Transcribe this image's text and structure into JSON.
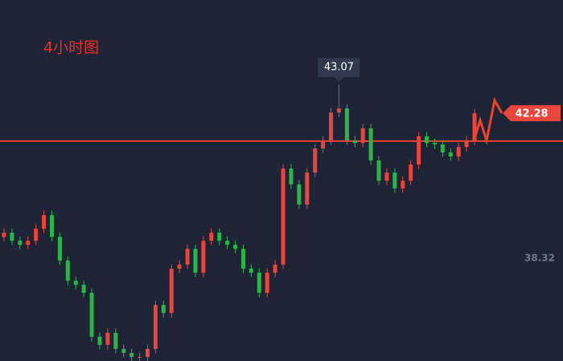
{
  "chart_data": {
    "type": "candlestick",
    "title": "4小时图",
    "ylim": [
      35.52,
      45.37
    ],
    "yticks": [
      38.32
    ],
    "hline": 41.52,
    "last_price": 42.28,
    "peak_label_index": 42,
    "up_color": "#e8453c",
    "down_color": "#2eb34b",
    "line_color": "#e8452c",
    "series": [
      {
        "open": [
          38.9,
          39.02,
          38.8,
          38.69,
          38.8,
          39.13,
          39.5,
          38.91,
          38.26,
          37.71,
          37.6,
          37.38,
          36.18,
          35.96,
          36.29,
          35.85,
          35.74,
          35.63,
          35.63,
          35.85,
          37.05,
          36.83,
          38.04,
          38.15,
          38.58,
          37.93,
          38.8,
          39.02,
          38.8,
          38.69,
          38.58,
          38.04,
          37.93,
          37.38,
          37.93,
          38.15,
          40.77,
          40.34,
          39.79,
          40.66,
          41.32,
          41.54,
          42.3,
          42.41,
          41.54,
          41.47,
          41.87,
          40.99,
          40.44,
          40.66,
          40.23,
          40.44,
          40.88,
          41.65,
          41.47,
          41.43,
          41.21,
          41.1,
          41.36,
          41.54
        ],
        "high": [
          39.14,
          39.14,
          38.92,
          38.92,
          39.25,
          39.62,
          39.62,
          39.03,
          38.38,
          37.83,
          37.72,
          37.5,
          36.3,
          36.41,
          36.41,
          35.97,
          35.86,
          35.75,
          35.97,
          37.17,
          37.17,
          38.16,
          38.27,
          38.7,
          38.7,
          38.92,
          39.14,
          39.14,
          38.92,
          38.81,
          38.7,
          38.16,
          38.05,
          38.05,
          38.27,
          40.89,
          40.89,
          40.46,
          40.78,
          41.44,
          41.66,
          42.42,
          43.07,
          42.53,
          41.66,
          41.99,
          41.99,
          41.11,
          40.78,
          40.78,
          40.56,
          41.0,
          41.77,
          41.77,
          41.59,
          41.55,
          41.33,
          41.48,
          41.66,
          42.4
        ],
        "low": [
          38.78,
          38.68,
          38.57,
          38.57,
          38.68,
          39.01,
          38.79,
          38.14,
          37.59,
          37.48,
          37.26,
          36.06,
          35.84,
          35.84,
          35.73,
          35.62,
          35.51,
          35.51,
          35.51,
          35.73,
          36.71,
          36.71,
          37.92,
          38.03,
          37.81,
          37.81,
          38.68,
          38.68,
          38.57,
          38.46,
          37.92,
          37.81,
          37.26,
          37.26,
          37.81,
          38.03,
          40.22,
          39.67,
          39.67,
          40.54,
          41.2,
          41.42,
          42.18,
          41.42,
          41.35,
          41.35,
          40.87,
          40.32,
          40.32,
          40.11,
          40.11,
          40.32,
          40.76,
          41.35,
          41.31,
          41.09,
          40.98,
          40.98,
          41.24,
          41.42
        ],
        "close": [
          39.02,
          38.8,
          38.69,
          38.8,
          39.13,
          39.5,
          38.91,
          38.26,
          37.71,
          37.6,
          37.38,
          36.18,
          35.96,
          36.29,
          35.85,
          35.74,
          35.63,
          35.63,
          35.85,
          37.05,
          36.83,
          38.04,
          38.15,
          38.58,
          37.93,
          38.8,
          39.02,
          38.8,
          38.69,
          38.58,
          38.04,
          37.93,
          37.38,
          37.93,
          38.15,
          40.77,
          40.34,
          39.79,
          40.66,
          41.32,
          41.54,
          42.3,
          42.41,
          41.54,
          41.47,
          41.87,
          40.99,
          40.44,
          40.66,
          40.23,
          40.44,
          40.88,
          41.65,
          41.47,
          41.43,
          41.21,
          41.1,
          41.36,
          41.54,
          42.28
        ]
      }
    ]
  }
}
